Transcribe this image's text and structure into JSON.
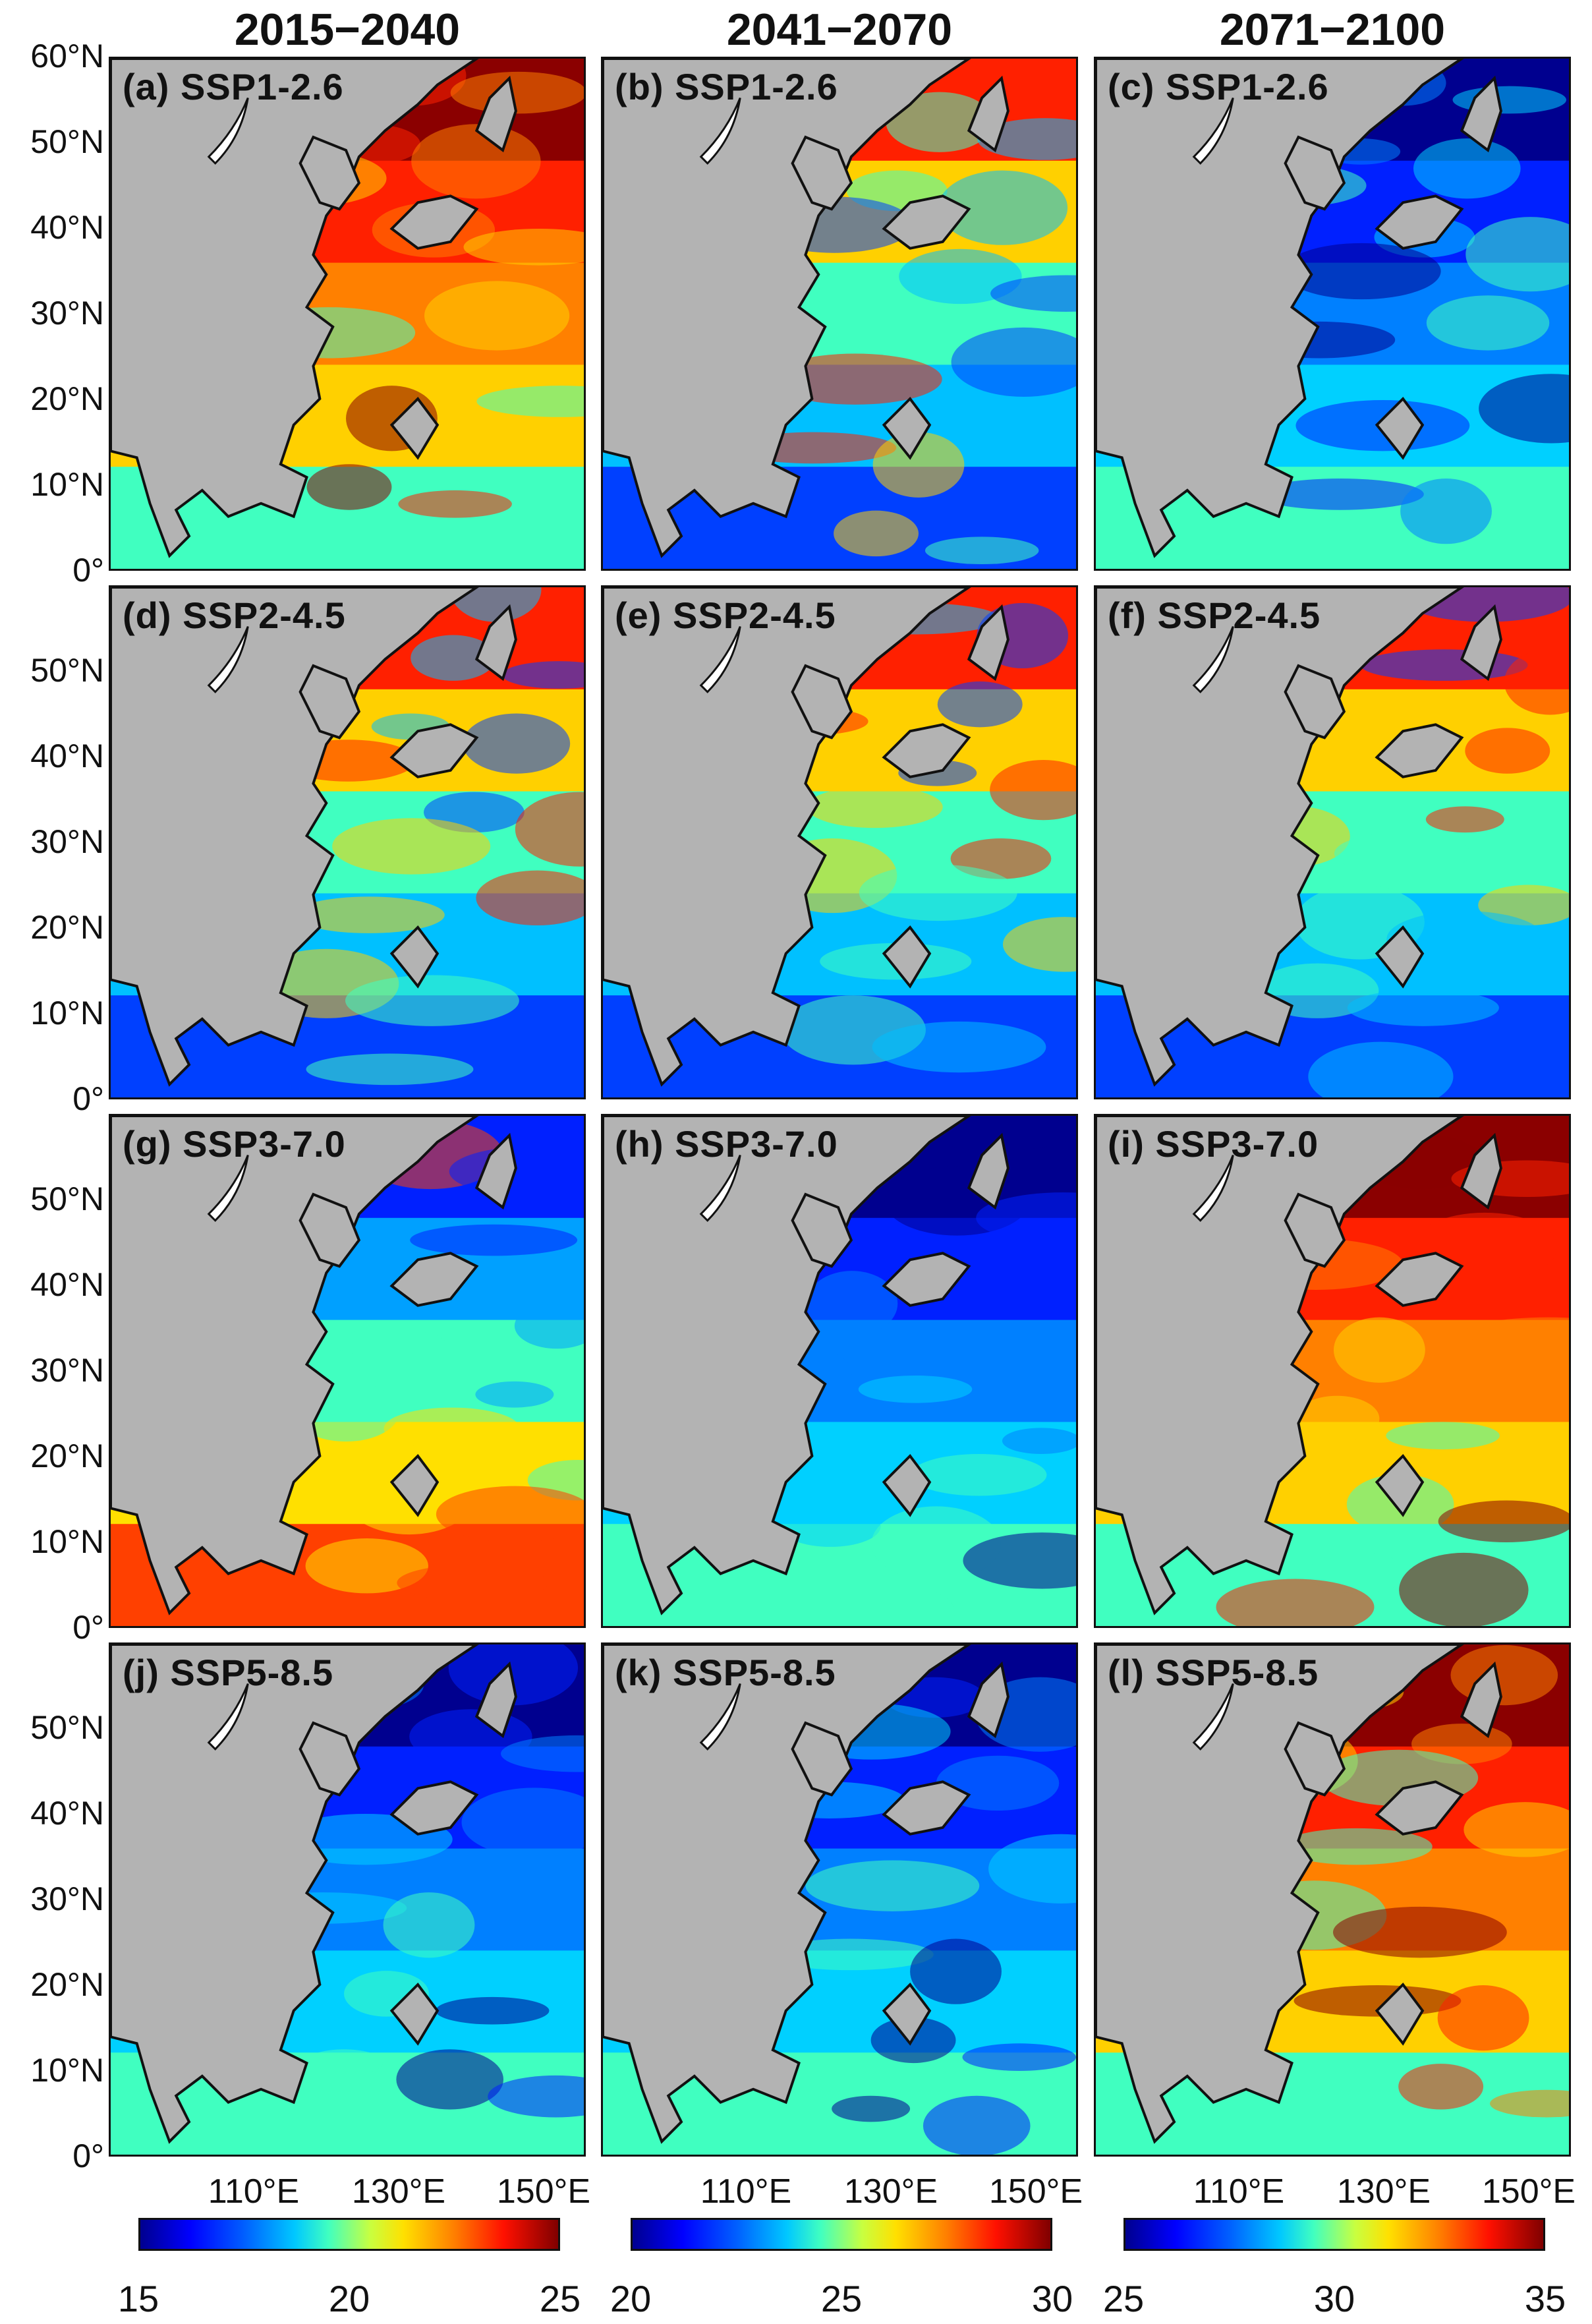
{
  "columns": [
    "2015−2040",
    "2041−2070",
    "2071→2100"
  ],
  "panels": [
    {
      "label": "(a) SSP1-2.6",
      "palette": "hot"
    },
    {
      "label": "(b) SSP1-2.6",
      "palette": "mixed"
    },
    {
      "label": "(c) SSP1-2.6",
      "palette": "cool"
    },
    {
      "label": "(d) SSP2-4.5",
      "palette": "mixed"
    },
    {
      "label": "(e) SSP2-4.5",
      "palette": "mixed"
    },
    {
      "label": "(f) SSP2-4.5",
      "palette": "mixed"
    },
    {
      "label": "(g) SSP3-7.0",
      "palette": "mixed-cool"
    },
    {
      "label": "(h) SSP3-7.0",
      "palette": "cool"
    },
    {
      "label": "(i) SSP3-7.0",
      "palette": "hot"
    },
    {
      "label": "(j) SSP5-8.5",
      "palette": "cool"
    },
    {
      "label": "(k) SSP5-8.5",
      "palette": "cool"
    },
    {
      "label": "(l) SSP5-8.5",
      "palette": "hot"
    }
  ],
  "y_ticks_first": [
    "60°N",
    "50°N",
    "40°N",
    "30°N",
    "20°N",
    "10°N",
    "0°"
  ],
  "y_ticks": [
    "50°N",
    "40°N",
    "30°N",
    "20°N",
    "10°N",
    "0°"
  ],
  "x_ticks": [
    "110°E",
    "130°E",
    "150°E"
  ],
  "colorbars": [
    {
      "ticks": [
        "15",
        "20",
        "25"
      ]
    },
    {
      "ticks": [
        "20",
        "25",
        "30"
      ]
    },
    {
      "ticks": [
        "25",
        "30",
        "35"
      ]
    }
  ],
  "colors": {
    "land": "#b3b3b3",
    "deep_blue": "#00008f",
    "blue": "#0040ff",
    "cyan": "#00d0ff",
    "yellow": "#ffe000",
    "red": "#ff2000",
    "dark_red": "#8b0000"
  }
}
